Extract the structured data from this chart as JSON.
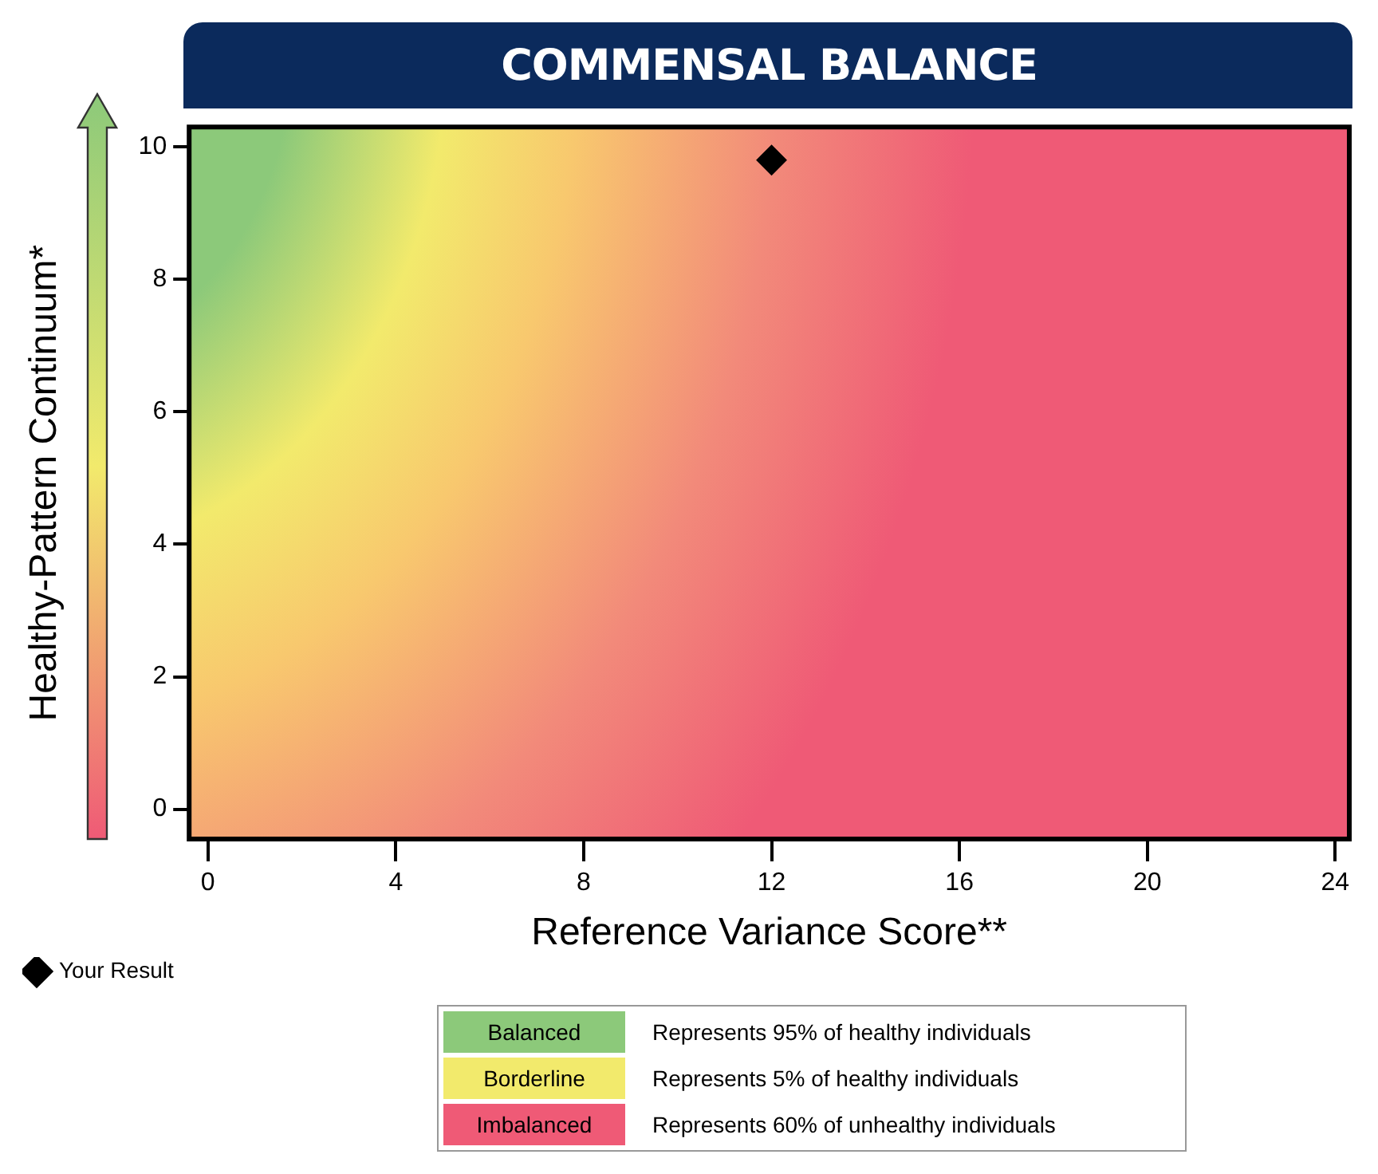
{
  "chart_data": {
    "type": "scatter",
    "title": "COMMENSAL BALANCE",
    "xlabel": "Reference Variance Score**",
    "ylabel": "Healthy-Pattern Continuum*",
    "series": [
      {
        "name": "Your Result",
        "color": "#000000",
        "x": [
          12
        ],
        "values": [
          9.8
        ]
      }
    ],
    "xlim": [
      -0.4,
      24.3
    ],
    "xticks": [
      0,
      4,
      8,
      12,
      16,
      20,
      24
    ],
    "ylim": [
      -0.45,
      10.3
    ],
    "yticks": [
      0,
      2,
      4,
      6,
      8,
      10
    ],
    "grid": false,
    "legend": "bottom left",
    "marker": "diamond",
    "annotations": [
      "Balanced",
      "Represents 95% of healthy individuals",
      "Borderline",
      "Represents 5% of healthy individuals",
      "Imbalanced",
      "Represents 60% of unhealthy individuals"
    ]
  }
}
